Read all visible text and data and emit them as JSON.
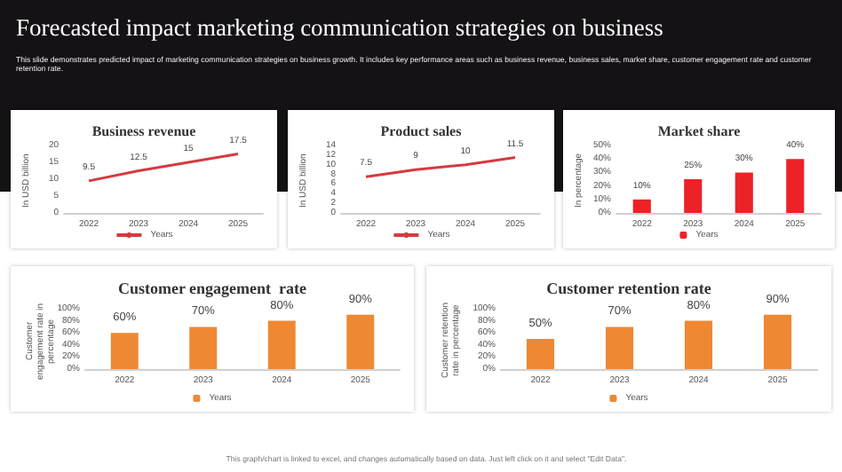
{
  "chart_data": [
    {
      "type": "other",
      "title": "Forecasted impact marketing communication strategies on business",
      "subtitle": "This slide demonstrates predicted impact of marketing communication strategies on business growth. It includes key performance areas such as business revenue, business sales, market share, customer engagement rate and customer retention rate.",
      "annotations": [
        "This graph/chart is linked to excel, and changes automatically based on data. Just left click on it and select \"Edit Data\"."
      ]
    },
    {
      "type": "line",
      "title": "Business revenue",
      "ylabel": "In USD billion",
      "categories": [
        "2022",
        "2023",
        "2024",
        "2025"
      ],
      "series": [
        {
          "name": "Years",
          "color": "#d63a3f",
          "values": [
            9.5,
            12.5,
            15,
            17.5
          ]
        }
      ],
      "ylim": [
        0,
        20
      ],
      "yticks": [
        0,
        5,
        10,
        15,
        20
      ],
      "data_labels": true,
      "marker": "none",
      "legend": "bottom"
    },
    {
      "type": "line",
      "title": "Product sales",
      "ylabel": "In USD billion",
      "categories": [
        "2022",
        "2023",
        "2024",
        "2025"
      ],
      "series": [
        {
          "name": "Years",
          "color": "#d63a3f",
          "values": [
            7.5,
            9,
            10,
            11.5
          ]
        }
      ],
      "ylim": [
        0,
        14
      ],
      "yticks": [
        0,
        2,
        4,
        6,
        8,
        10,
        12,
        14
      ],
      "data_labels": true,
      "marker": "none",
      "legend": "bottom"
    },
    {
      "type": "bar",
      "title": "Market share",
      "ylabel": "In percentage",
      "categories": [
        "2022",
        "2023",
        "2024",
        "2025"
      ],
      "series": [
        {
          "name": "Years",
          "color": "#ec2227",
          "values": [
            10,
            25,
            30,
            40
          ],
          "value_labels": [
            "10%",
            "25%",
            "30%",
            "40%"
          ]
        }
      ],
      "ylim": [
        0,
        50
      ],
      "yticks": [
        {
          "value": 0,
          "label": "0%"
        },
        {
          "value": 10,
          "label": "10%"
        },
        {
          "value": 20,
          "label": "20%"
        },
        {
          "value": 30,
          "label": "30%"
        },
        {
          "value": 40,
          "label": "40%"
        },
        {
          "value": 50,
          "label": "50%"
        }
      ],
      "legend": "bottom"
    },
    {
      "type": "bar",
      "title": "Customer engagement  rate",
      "ylabel": "Customer engagement rate in percentage",
      "categories": [
        "2022",
        "2023",
        "2024",
        "2025"
      ],
      "series": [
        {
          "name": "Years",
          "color": "#ef8833",
          "values": [
            60,
            70,
            80,
            90
          ],
          "value_labels": [
            "60%",
            "70%",
            "80%",
            "90%"
          ]
        }
      ],
      "ylim": [
        0,
        100
      ],
      "yticks": [
        {
          "value": 0,
          "label": "0%"
        },
        {
          "value": 20,
          "label": "20%"
        },
        {
          "value": 40,
          "label": "40%"
        },
        {
          "value": 60,
          "label": "60%"
        },
        {
          "value": 80,
          "label": "80%"
        },
        {
          "value": 100,
          "label": "100%"
        }
      ],
      "legend": "bottom"
    },
    {
      "type": "bar",
      "title": "Customer retention rate",
      "ylabel": "Customer retention rate in percentage",
      "categories": [
        "2022",
        "2023",
        "2024",
        "2025"
      ],
      "series": [
        {
          "name": "Years",
          "color": "#ef8833",
          "values": [
            50,
            70,
            80,
            90
          ],
          "value_labels": [
            "50%",
            "70%",
            "80%",
            "90%"
          ]
        }
      ],
      "ylim": [
        0,
        100
      ],
      "yticks": [
        {
          "value": 0,
          "label": "0%"
        },
        {
          "value": 20,
          "label": "20%"
        },
        {
          "value": 40,
          "label": "40%"
        },
        {
          "value": 60,
          "label": "60%"
        },
        {
          "value": 80,
          "label": "80%"
        },
        {
          "value": 100,
          "label": "100%"
        }
      ],
      "legend": "bottom"
    }
  ]
}
